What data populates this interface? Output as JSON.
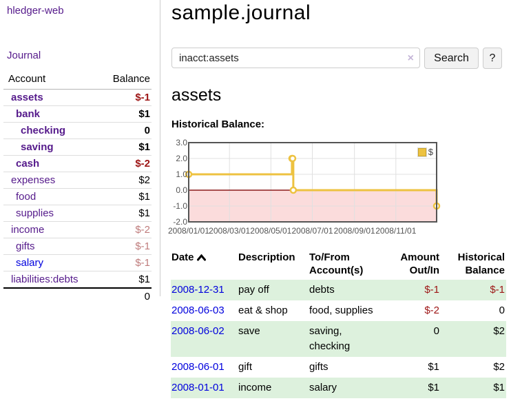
{
  "app": {
    "title": "hledger-web",
    "nav_journal": "Journal"
  },
  "colors": {
    "link_purple": "#551a8b",
    "link_blue": "#0000dd",
    "negative_strong": "#9d1515",
    "negative_muted": "#bf7c7c",
    "row_stripe_green": "#ddf1dd",
    "series_gold": "#edc240",
    "negative_region_pink": "#fbdcdc",
    "zero_line_red": "#8b1a1a"
  },
  "sidebar": {
    "header": {
      "account": "Account",
      "balance": "Balance"
    },
    "rows": [
      {
        "account": "assets",
        "balance": "$-1",
        "indent": 1,
        "bold": true,
        "tone": "neg-strong"
      },
      {
        "account": "bank",
        "balance": "$1",
        "indent": 2,
        "bold": true,
        "tone": ""
      },
      {
        "account": "checking",
        "balance": "0",
        "indent": 3,
        "bold": true,
        "tone": ""
      },
      {
        "account": "saving",
        "balance": "$1",
        "indent": 3,
        "bold": true,
        "tone": ""
      },
      {
        "account": "cash",
        "balance": "$-2",
        "indent": 2,
        "bold": true,
        "tone": "neg-strong"
      },
      {
        "account": "expenses",
        "balance": "$2",
        "indent": 1,
        "bold": false,
        "tone": ""
      },
      {
        "account": "food",
        "balance": "$1",
        "indent": 2,
        "bold": false,
        "tone": ""
      },
      {
        "account": "supplies",
        "balance": "$1",
        "indent": 2,
        "bold": false,
        "tone": ""
      },
      {
        "account": "income",
        "balance": "$-2",
        "indent": 1,
        "bold": false,
        "tone": "neg-muted"
      },
      {
        "account": "gifts",
        "balance": "$-1",
        "indent": 2,
        "bold": false,
        "tone": "neg-muted"
      },
      {
        "account": "salary",
        "balance": "$-1",
        "indent": 2,
        "bold": false,
        "tone": "neg-muted",
        "blue": true
      },
      {
        "account": "liabilities:debts",
        "balance": "$1",
        "indent": 1,
        "bold": false,
        "tone": ""
      }
    ],
    "total": "0"
  },
  "main": {
    "title": "sample.journal",
    "search": {
      "value": "inacct:assets",
      "clear_icon": "×",
      "button_label": "Search",
      "help_label": "?"
    },
    "account_heading": "assets",
    "chart_label": "Historical Balance:"
  },
  "chart_data": {
    "type": "line",
    "style": "steps",
    "title": "Historical Balance:",
    "series": [
      {
        "name": "$",
        "color": "#edc240",
        "points": [
          [
            "2008-01-01",
            1
          ],
          [
            "2008-06-01",
            2
          ],
          [
            "2008-06-02",
            2
          ],
          [
            "2008-06-03",
            0
          ],
          [
            "2008-12-31",
            -1
          ]
        ]
      }
    ],
    "xlim": [
      "2008-01-01",
      "2008-12-31"
    ],
    "ylim": [
      -2,
      3
    ],
    "y_ticks": [
      3.0,
      2.0,
      1.0,
      0.0,
      -1.0,
      -2.0
    ],
    "x_ticks": [
      "2008/01/01",
      "2008/03/01",
      "2008/05/01",
      "2008/07/01",
      "2008/09/01",
      "2008/11/01"
    ],
    "grid": true,
    "negative_region_shaded": true,
    "legend": {
      "label": "$",
      "position": "top-right"
    }
  },
  "register": {
    "headers": [
      "Date",
      "Description",
      "To/From Account(s)",
      "Amount Out/In",
      "Historical Balance"
    ],
    "rows": [
      {
        "date": "2008-12-31",
        "description": "pay off",
        "accounts": "debts",
        "amount": "$-1",
        "balance": "$-1"
      },
      {
        "date": "2008-06-03",
        "description": "eat & shop",
        "accounts": "food, supplies",
        "amount": "$-2",
        "balance": "0"
      },
      {
        "date": "2008-06-02",
        "description": "save",
        "accounts": "saving, checking",
        "amount": "0",
        "balance": "$2"
      },
      {
        "date": "2008-06-01",
        "description": "gift",
        "accounts": "gifts",
        "amount": "$1",
        "balance": "$2"
      },
      {
        "date": "2008-01-01",
        "description": "income",
        "accounts": "salary",
        "amount": "$1",
        "balance": "$1"
      }
    ]
  }
}
